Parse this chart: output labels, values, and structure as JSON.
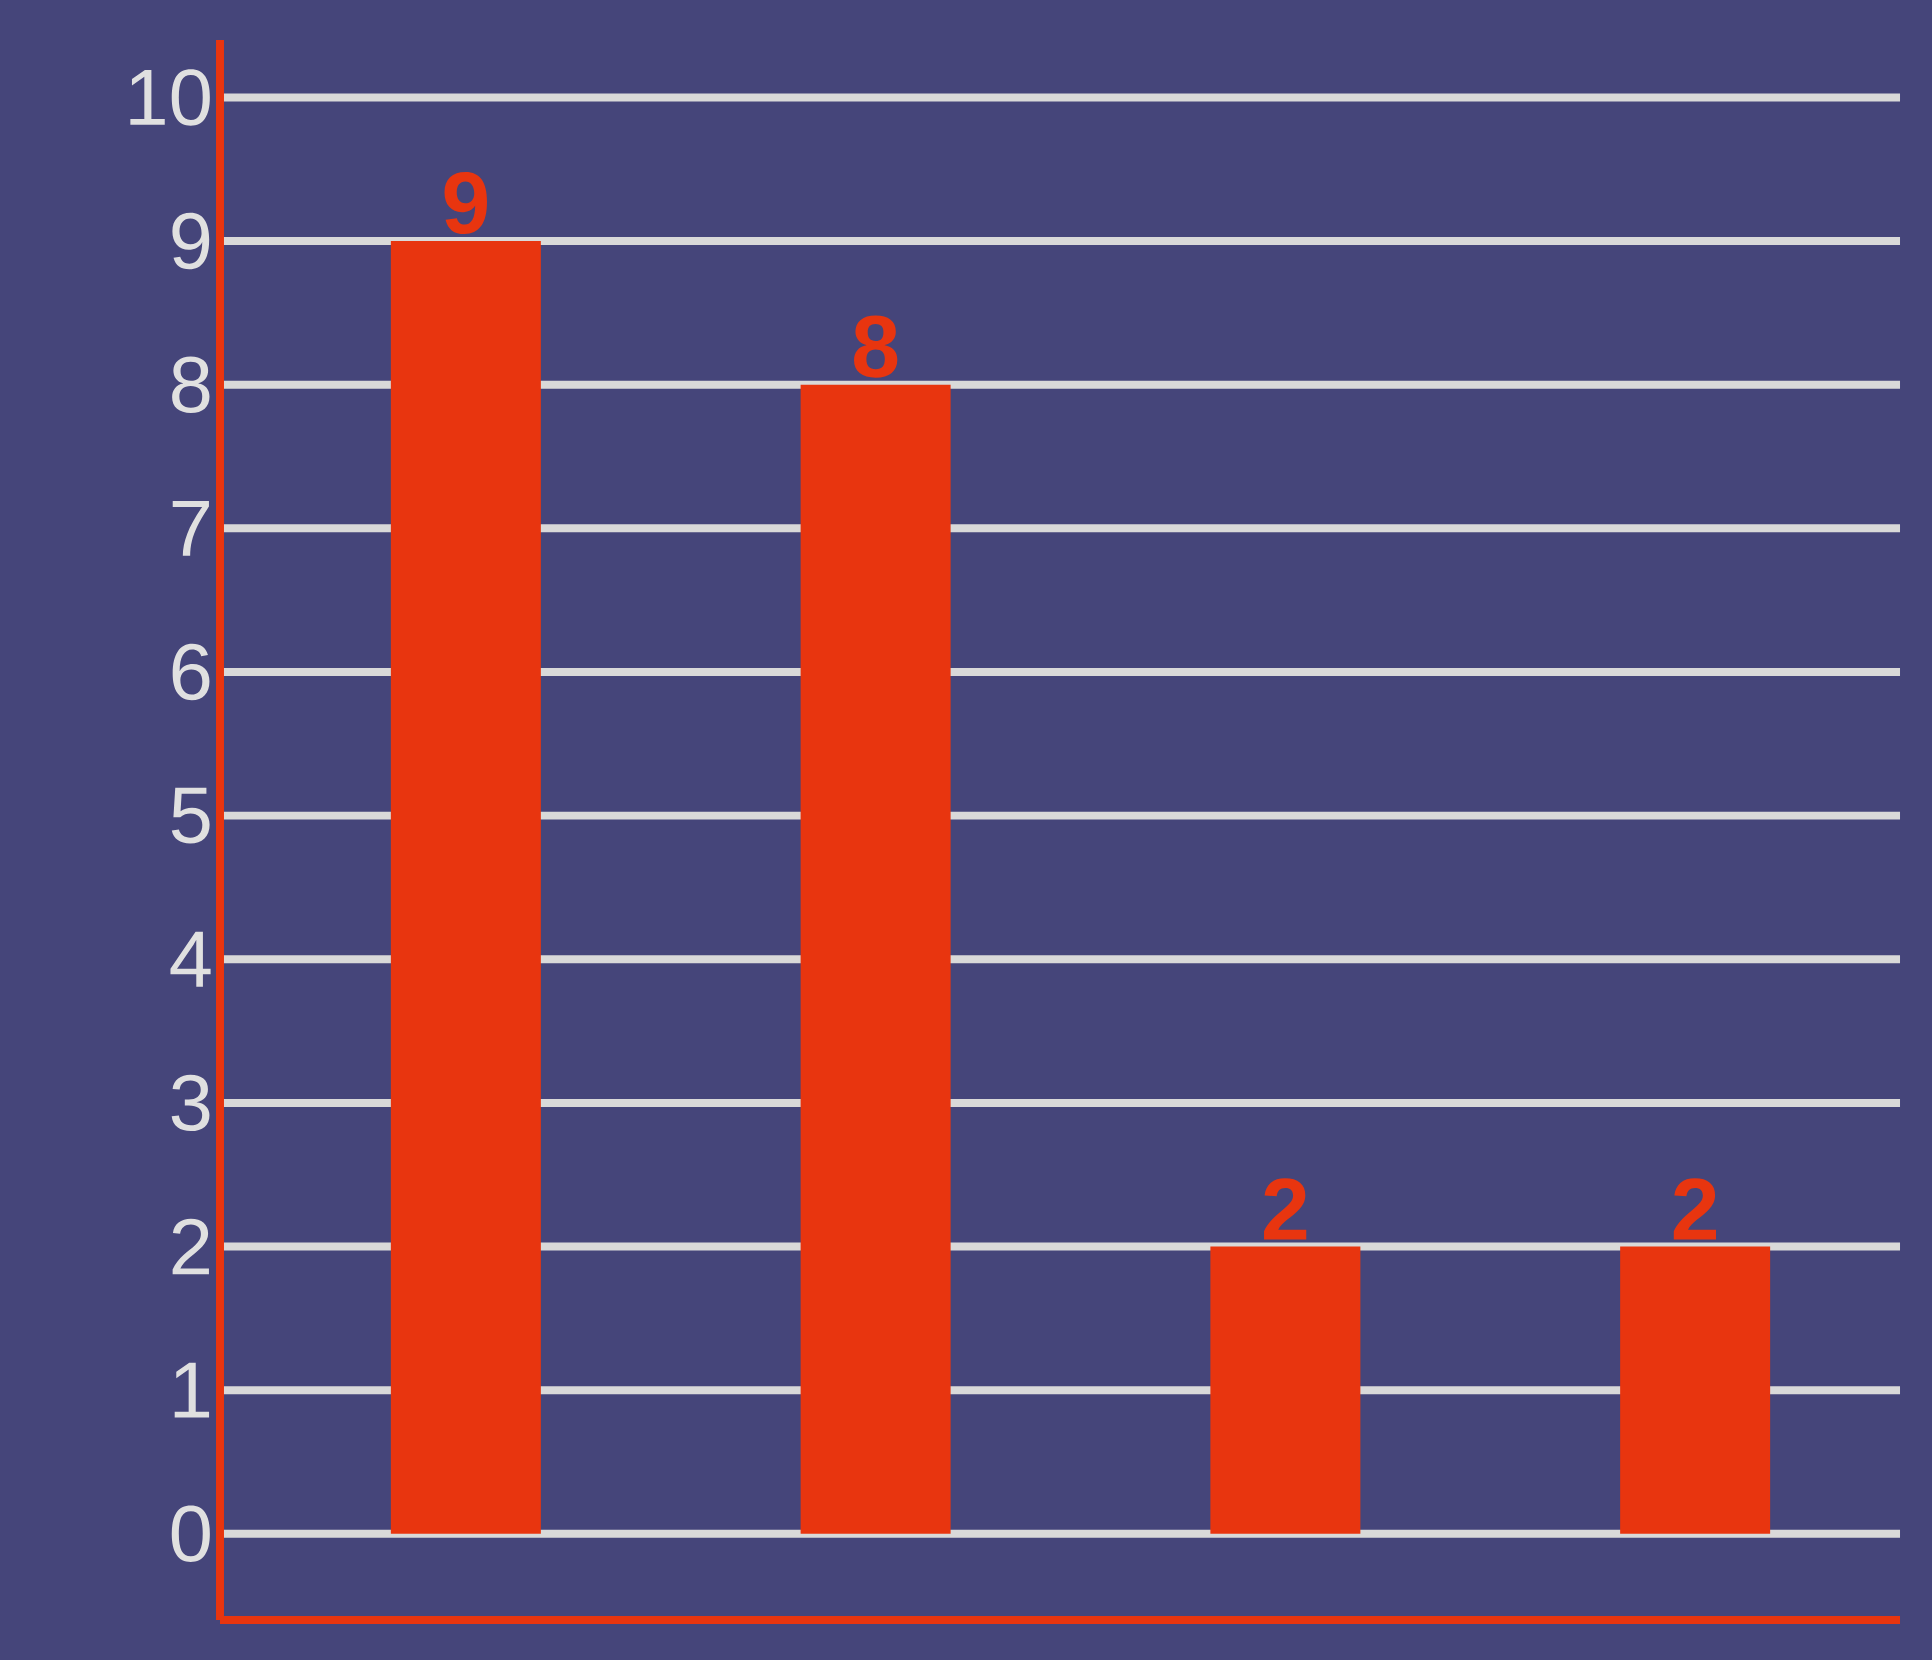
{
  "chart_data": {
    "type": "bar",
    "categories": [
      null,
      null,
      null,
      null
    ],
    "values": [
      9,
      8,
      2,
      2
    ],
    "color": "#e8350f",
    "ylim": [
      -0.6,
      10.4
    ],
    "yticks": [
      0,
      1,
      2,
      3,
      4,
      5,
      6,
      7,
      8,
      9,
      10
    ],
    "grid": "y",
    "data_labels": true
  }
}
